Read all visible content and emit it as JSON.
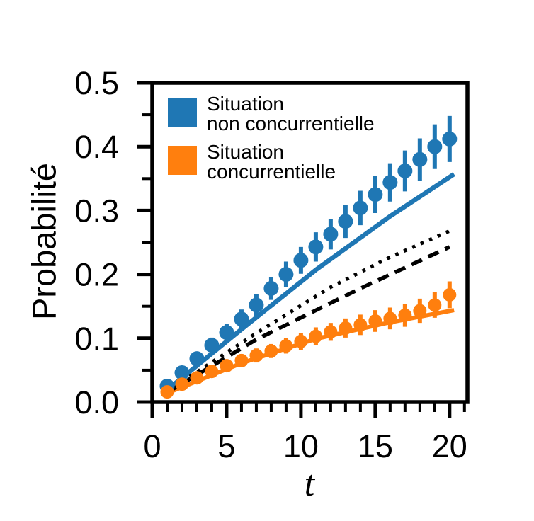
{
  "figure": {
    "background": "#ffffff"
  },
  "colors": {
    "blue": "#1f77b4",
    "orange": "#ff7f0e",
    "axis": "#000000"
  },
  "chart_data": {
    "type": "scatter",
    "title": "",
    "xlabel": "t",
    "ylabel": "Probabilité",
    "xlim": [
      0,
      21.2
    ],
    "ylim": [
      0,
      0.5
    ],
    "x_major_ticks": [
      0,
      5,
      10,
      15,
      20
    ],
    "x_major_labels": [
      "0",
      "5",
      "10",
      "15",
      "20"
    ],
    "x_minor_step": 1,
    "y_major_ticks": [
      0,
      0.1,
      0.2,
      0.3,
      0.4,
      0.5
    ],
    "y_major_labels": [
      "0.0",
      "0.1",
      "0.2",
      "0.3",
      "0.4",
      "0.5"
    ],
    "y_minor_step": 0.05,
    "grid": false,
    "legend_position": "upper left",
    "series": [
      {
        "id": "blue-scatter",
        "label": "Situation non concurrentielle",
        "type": "scatter",
        "marker": "circle",
        "color": "#1f77b4",
        "marker_radius": 10.5,
        "errorbar_width": 6,
        "x": [
          1,
          2,
          3,
          4,
          5,
          6,
          7,
          8,
          9,
          10,
          11,
          12,
          13,
          14,
          15,
          16,
          17,
          18,
          19,
          20
        ],
        "y": [
          0.025,
          0.046,
          0.068,
          0.089,
          0.109,
          0.13,
          0.152,
          0.178,
          0.2,
          0.222,
          0.243,
          0.263,
          0.283,
          0.304,
          0.325,
          0.344,
          0.362,
          0.38,
          0.4,
          0.412
        ],
        "yerr": [
          0.008,
          0.009,
          0.011,
          0.012,
          0.014,
          0.015,
          0.017,
          0.018,
          0.02,
          0.021,
          0.023,
          0.024,
          0.026,
          0.027,
          0.029,
          0.03,
          0.032,
          0.033,
          0.035,
          0.036
        ]
      },
      {
        "id": "orange-scatter",
        "label": "Situation concurrentielle",
        "type": "scatter",
        "marker": "circle",
        "color": "#ff7f0e",
        "marker_radius": 9.5,
        "errorbar_width": 6,
        "x": [
          1,
          2,
          3,
          4,
          5,
          6,
          7,
          8,
          9,
          10,
          11,
          12,
          13,
          14,
          15,
          16,
          17,
          18,
          19,
          20
        ],
        "y": [
          0.016,
          0.028,
          0.038,
          0.048,
          0.057,
          0.065,
          0.073,
          0.08,
          0.088,
          0.095,
          0.103,
          0.11,
          0.116,
          0.121,
          0.127,
          0.131,
          0.136,
          0.143,
          0.152,
          0.168
        ],
        "yerr": [
          0.005,
          0.006,
          0.007,
          0.008,
          0.009,
          0.01,
          0.011,
          0.011,
          0.012,
          0.013,
          0.014,
          0.014,
          0.015,
          0.016,
          0.017,
          0.017,
          0.018,
          0.019,
          0.02,
          0.021
        ]
      },
      {
        "id": "blue-line",
        "type": "line",
        "style": "solid",
        "color": "#1f77b4",
        "width": 6.5,
        "points": [
          [
            1,
            0.019
          ],
          [
            6,
            0.114
          ],
          [
            11,
            0.207
          ],
          [
            16,
            0.291
          ],
          [
            20.3,
            0.357
          ]
        ]
      },
      {
        "id": "orange-line",
        "type": "line",
        "style": "solid",
        "color": "#ff7f0e",
        "width": 6,
        "points": [
          [
            1,
            0.014
          ],
          [
            6,
            0.061
          ],
          [
            11,
            0.099
          ],
          [
            16,
            0.125
          ],
          [
            20.3,
            0.144
          ]
        ]
      },
      {
        "id": "black-dashed-line",
        "type": "line",
        "style": "dashed",
        "color": "#000000",
        "width": 5.5,
        "points": [
          [
            1,
            0.015
          ],
          [
            7,
            0.098
          ],
          [
            14,
            0.178
          ],
          [
            20,
            0.243
          ]
        ]
      },
      {
        "id": "black-dotted-line",
        "type": "line",
        "style": "dotted",
        "color": "#000000",
        "width": 5,
        "points": [
          [
            2,
            0.032
          ],
          [
            7,
            0.108
          ],
          [
            12,
            0.18
          ],
          [
            16,
            0.227
          ],
          [
            20,
            0.268
          ]
        ]
      }
    ]
  },
  "legend": {
    "items": [
      {
        "line1": "Situation",
        "line2": "non concurrentielle",
        "color": "#1f77b4"
      },
      {
        "line1": "Situation",
        "line2": "concurrentielle",
        "color": "#ff7f0e"
      }
    ]
  }
}
